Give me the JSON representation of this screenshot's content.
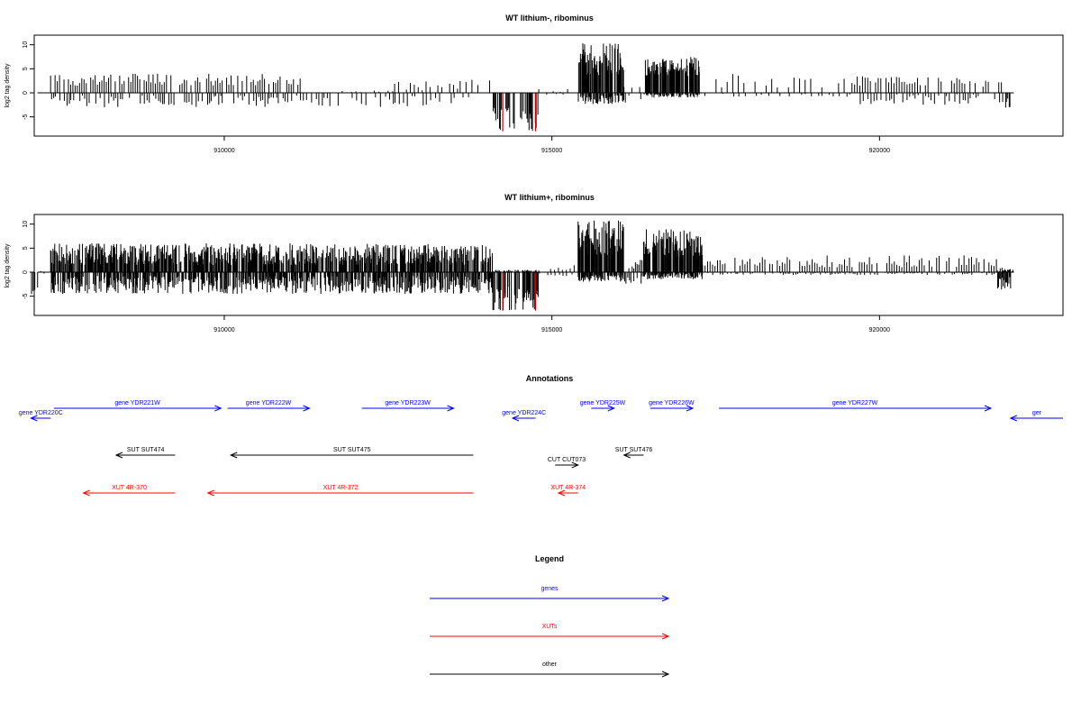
{
  "colors": {
    "gene": "#0000ff",
    "xut": "#ff0000",
    "other": "#000000",
    "negative_highlight": "#cc0000",
    "axis": "#000000"
  },
  "chart_data": [
    {
      "type": "bar",
      "title": "WT lithium-, ribominus",
      "ylabel": "log2 tag density",
      "xlabel": "",
      "xlim": [
        907100,
        922800
      ],
      "ylim": [
        -9,
        12
      ],
      "xticks": [
        910000,
        915000,
        920000
      ],
      "xtick_labels": [
        "910000",
        "915000",
        "920000"
      ],
      "yticks": [
        -5,
        0,
        5,
        10
      ],
      "ytick_labels": [
        "-5",
        "0",
        "5",
        "10"
      ],
      "grid": false,
      "baseline": 0,
      "segments": [
        {
          "from": 907100,
          "to": 907350,
          "pos": [
            0,
            0
          ],
          "neg": [
            0,
            0
          ],
          "step": 40
        },
        {
          "from": 907350,
          "to": 911200,
          "pos": [
            1.5,
            4.0
          ],
          "neg": [
            0.5,
            3.0
          ],
          "step": 34
        },
        {
          "from": 911200,
          "to": 911800,
          "pos": [
            0,
            0
          ],
          "neg": [
            0.8,
            3.0
          ],
          "step": 40
        },
        {
          "from": 911800,
          "to": 912600,
          "pos": [
            0,
            0.5
          ],
          "neg": [
            0.5,
            3.0
          ],
          "step": 70
        },
        {
          "from": 912600,
          "to": 913600,
          "pos": [
            0.4,
            2.5
          ],
          "neg": [
            0.5,
            3.0
          ],
          "step": 60
        },
        {
          "from": 913600,
          "to": 914100,
          "pos": [
            0.3,
            3.0
          ],
          "neg": [
            0.2,
            1.0
          ],
          "step": 90
        },
        {
          "from": 914100,
          "to": 914800,
          "pos": [
            0,
            0
          ],
          "neg": [
            3.0,
            8.0
          ],
          "step": 14
        },
        {
          "from": 914800,
          "to": 915400,
          "pos": [
            0.2,
            0.8
          ],
          "neg": [
            0.1,
            0.4
          ],
          "step": 110
        },
        {
          "from": 915400,
          "to": 916100,
          "pos": [
            3.5,
            10.5
          ],
          "neg": [
            0.5,
            2.5
          ],
          "step": 9
        },
        {
          "from": 916100,
          "to": 916400,
          "pos": [
            0.2,
            1.5
          ],
          "neg": [
            0.5,
            2.5
          ],
          "step": 60
        },
        {
          "from": 916400,
          "to": 917250,
          "pos": [
            3.5,
            7.5
          ],
          "neg": [
            0.2,
            1.0
          ],
          "step": 9
        },
        {
          "from": 917250,
          "to": 919500,
          "pos": [
            1.0,
            4.5
          ],
          "neg": [
            0.2,
            0.8
          ],
          "step": 85
        },
        {
          "from": 919500,
          "to": 921900,
          "pos": [
            1.0,
            3.5
          ],
          "neg": [
            0.3,
            2.5
          ],
          "step": 40
        },
        {
          "from": 921900,
          "to": 922000,
          "pos": [
            0,
            0
          ],
          "neg": [
            1.0,
            3.5
          ],
          "step": 18
        },
        {
          "from": 922000,
          "to": 922050,
          "pos": [
            0,
            0.5
          ],
          "neg": [
            0,
            0
          ],
          "step": 50
        }
      ],
      "highlight_spikes": [
        914250,
        914750
      ],
      "highlight_depth": -8
    },
    {
      "type": "bar",
      "title": "WT lithium+, ribominus",
      "ylabel": "log2 tag density",
      "xlabel": "",
      "xlim": [
        907100,
        922800
      ],
      "ylim": [
        -9,
        12
      ],
      "xticks": [
        910000,
        915000,
        920000
      ],
      "xtick_labels": [
        "910000",
        "915000",
        "920000"
      ],
      "yticks": [
        -5,
        0,
        5,
        10
      ],
      "ytick_labels": [
        "-5",
        "0",
        "5",
        "10"
      ],
      "grid": false,
      "baseline": 0,
      "segments": [
        {
          "from": 907050,
          "to": 907200,
          "pos": [
            0,
            0
          ],
          "neg": [
            2.0,
            5.0
          ],
          "step": 25
        },
        {
          "from": 907200,
          "to": 907350,
          "pos": [
            0,
            0.3
          ],
          "neg": [
            0,
            0.3
          ],
          "step": 40
        },
        {
          "from": 907350,
          "to": 914100,
          "pos": [
            1.5,
            6.0
          ],
          "neg": [
            0.8,
            4.5
          ],
          "step": 9
        },
        {
          "from": 914100,
          "to": 914800,
          "pos": [
            0,
            0.5
          ],
          "neg": [
            3.0,
            8.0
          ],
          "step": 10
        },
        {
          "from": 914800,
          "to": 915400,
          "pos": [
            0.3,
            1.5
          ],
          "neg": [
            0.2,
            0.8
          ],
          "step": 60
        },
        {
          "from": 915400,
          "to": 916100,
          "pos": [
            3.5,
            11.0
          ],
          "neg": [
            0.5,
            2.0
          ],
          "step": 7
        },
        {
          "from": 916100,
          "to": 916400,
          "pos": [
            0.5,
            3.0
          ],
          "neg": [
            0.5,
            2.5
          ],
          "step": 25
        },
        {
          "from": 916400,
          "to": 917300,
          "pos": [
            3.0,
            9.0
          ],
          "neg": [
            0.2,
            1.5
          ],
          "step": 7
        },
        {
          "from": 917300,
          "to": 921800,
          "pos": [
            1.0,
            3.5
          ],
          "neg": [
            0.1,
            0.6
          ],
          "step": 38
        },
        {
          "from": 921800,
          "to": 922050,
          "pos": [
            0,
            1.0
          ],
          "neg": [
            1.0,
            4.0
          ],
          "step": 14
        }
      ],
      "highlight_spikes": [
        914250,
        914750
      ],
      "highlight_depth": -8
    }
  ],
  "annotations": {
    "title": "Annotations",
    "xlim": [
      907100,
      922800
    ],
    "features": [
      {
        "label": "gene YDR220C",
        "kind": "gene",
        "strand": "-",
        "start": 907050,
        "end": 907350,
        "row": 1
      },
      {
        "label": "gene YDR221W",
        "kind": "gene",
        "strand": "+",
        "start": 907400,
        "end": 909950,
        "row": 0
      },
      {
        "label": "gene YDR222W",
        "kind": "gene",
        "strand": "+",
        "start": 910050,
        "end": 911300,
        "row": 0
      },
      {
        "label": "gene YDR223W",
        "kind": "gene",
        "strand": "+",
        "start": 912100,
        "end": 913500,
        "row": 0
      },
      {
        "label": "gene YDR224C",
        "kind": "gene",
        "strand": "-",
        "start": 914400,
        "end": 914750,
        "row": 1
      },
      {
        "label": "gene YDR225W",
        "kind": "gene",
        "strand": "+",
        "start": 915600,
        "end": 915950,
        "row": 0
      },
      {
        "label": "gene YDR226W",
        "kind": "gene",
        "strand": "+",
        "start": 916500,
        "end": 917150,
        "row": 0
      },
      {
        "label": "gene YDR227W",
        "kind": "gene",
        "strand": "+",
        "start": 917550,
        "end": 921700,
        "row": 0
      },
      {
        "label": "ger",
        "kind": "gene",
        "strand": "-",
        "start": 922000,
        "end": 922800,
        "row": 1
      },
      {
        "label": "SUT SUT474",
        "kind": "other",
        "strand": "-",
        "start": 908350,
        "end": 909250,
        "row": 2
      },
      {
        "label": "SUT SUT475",
        "kind": "other",
        "strand": "-",
        "start": 910100,
        "end": 913800,
        "row": 2
      },
      {
        "label": "SUT SUT476",
        "kind": "other",
        "strand": "-",
        "start": 916100,
        "end": 916400,
        "row": 2
      },
      {
        "label": "CUT CUT073",
        "kind": "other",
        "strand": "+",
        "start": 915050,
        "end": 915400,
        "row": 3
      },
      {
        "label": "XUT 4R-370",
        "kind": "xut",
        "strand": "-",
        "start": 907850,
        "end": 909250,
        "row": 4
      },
      {
        "label": "XUT 4R-372",
        "kind": "xut",
        "strand": "-",
        "start": 909750,
        "end": 913800,
        "row": 4
      },
      {
        "label": "XUT 4R-374",
        "kind": "xut",
        "strand": "-",
        "start": 915100,
        "end": 915400,
        "row": 4
      }
    ]
  },
  "legend": {
    "title": "Legend",
    "items": [
      {
        "label": "genes",
        "kind": "gene"
      },
      {
        "label": "XUTs",
        "kind": "xut"
      },
      {
        "label": "other",
        "kind": "other"
      }
    ]
  }
}
